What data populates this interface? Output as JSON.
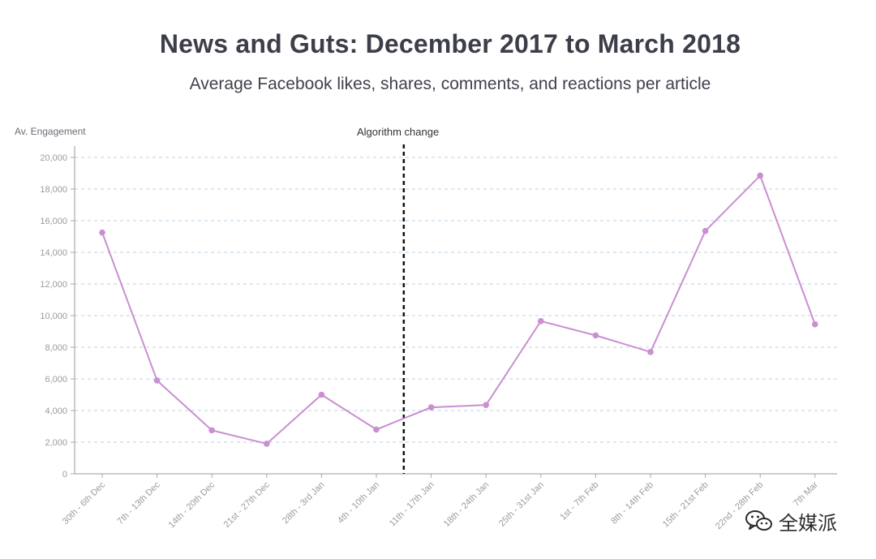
{
  "chart_data": {
    "type": "line",
    "title": "News and Guts: December 2017 to March 2018",
    "subtitle": "Average Facebook likes, shares, comments, and reactions per article",
    "ylabel": "Av. Engagement",
    "xlabel": "",
    "ylim": [
      0,
      20000
    ],
    "yticks": [
      "0",
      "2,000",
      "4,000",
      "6,000",
      "8,000",
      "10,000",
      "12,000",
      "14,000",
      "16,000",
      "18,000",
      "20,000"
    ],
    "categories": [
      "30th - 6th Dec",
      "7th - 13th Dec",
      "14th - 20th Dec",
      "21st - 27th Dec",
      "28th - 3rd Jan",
      "4th - 10th Jan",
      "11th - 17th Jan",
      "18th - 24th Jan",
      "25th - 31st Jan",
      "1st - 7th Feb",
      "8th - 14th Feb",
      "15th - 21st Feb",
      "22nd - 28th Feb",
      "7th Mar"
    ],
    "series": [
      {
        "values": [
          15250,
          5900,
          2750,
          1900,
          5000,
          2800,
          4200,
          4350,
          9650,
          8750,
          7700,
          15350,
          18850,
          9450
        ],
        "color": "#c98fd0"
      }
    ],
    "annotation": {
      "label": "Algorithm change",
      "after_category_index": 5
    },
    "grid": true,
    "grid_color": "#b9d3e6"
  },
  "watermark": {
    "text": "全媒派",
    "icon": "wechat-icon"
  }
}
